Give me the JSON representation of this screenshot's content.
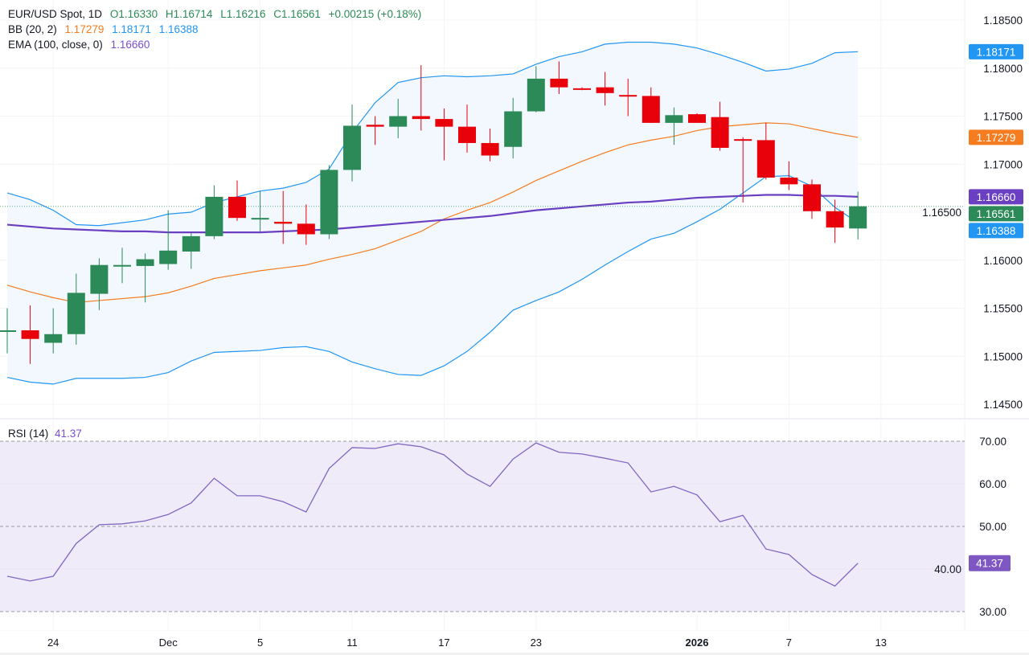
{
  "header": {
    "symbol": "EUR/USD Spot, 1D",
    "open": "O1.16330",
    "high": "H1.16714",
    "low": "L1.16216",
    "close": "C1.16561",
    "change": "+0.00215 (+0.18%)",
    "bb_label": "BB (20, 2)",
    "bb_basis": "1.17279",
    "bb_upper": "1.18171",
    "bb_lower": "1.16388",
    "ema_label": "EMA (100, close, 0)",
    "ema_value": "1.16660",
    "rsi_label": "RSI (14)",
    "rsi_value": "41.37"
  },
  "colors": {
    "up": "#2b8a57",
    "down": "#e8000b",
    "bb_basis": "#f57c1f",
    "bb_band": "#2196f3",
    "bb_fill": "#f2f8fe",
    "ema": "#6a3fc2",
    "rsi": "#8067c2",
    "rsi_fill": "#f0ebf8"
  },
  "chart_data": [
    {
      "type": "candlestick",
      "title": "EUR/USD Spot, 1D",
      "ylim": [
        1.1435,
        1.1875
      ],
      "y_ticks": [
        "1.18500",
        "1.18000",
        "1.17500",
        "1.17000",
        "1.16500",
        "1.16000",
        "1.15500",
        "1.15000",
        "1.14500"
      ],
      "x_tick_labels": [
        {
          "label": "24",
          "bar": 2
        },
        {
          "label": "Dec",
          "bar": 7
        },
        {
          "label": "5",
          "bar": 11
        },
        {
          "label": "11",
          "bar": 15
        },
        {
          "label": "17",
          "bar": 19
        },
        {
          "label": "23",
          "bar": 23
        },
        {
          "label": "2026",
          "bar": 30,
          "bold": true
        },
        {
          "label": "7",
          "bar": 34
        },
        {
          "label": "13",
          "bar": 38
        }
      ],
      "grid": true,
      "candles": [
        [
          1.1526,
          1.155,
          1.1503,
          1.1527
        ],
        [
          1.1527,
          1.1553,
          1.1492,
          1.1518
        ],
        [
          1.1514,
          1.155,
          1.1503,
          1.1523
        ],
        [
          1.1523,
          1.1586,
          1.1512,
          1.1566
        ],
        [
          1.1565,
          1.1602,
          1.1548,
          1.1595
        ],
        [
          1.1594,
          1.1613,
          1.1576,
          1.1595
        ],
        [
          1.1594,
          1.1607,
          1.1556,
          1.1601
        ],
        [
          1.1596,
          1.1652,
          1.159,
          1.161
        ],
        [
          1.1609,
          1.1628,
          1.1591,
          1.1625
        ],
        [
          1.1625,
          1.1678,
          1.1622,
          1.1666
        ],
        [
          1.1666,
          1.1683,
          1.1641,
          1.1644
        ],
        [
          1.1644,
          1.1672,
          1.163,
          1.1644
        ],
        [
          1.164,
          1.1672,
          1.1617,
          1.1638
        ],
        [
          1.1638,
          1.1658,
          1.1616,
          1.1627
        ],
        [
          1.1627,
          1.1699,
          1.1622,
          1.1694
        ],
        [
          1.1694,
          1.1762,
          1.1682,
          1.174
        ],
        [
          1.1741,
          1.175,
          1.172,
          1.1739
        ],
        [
          1.1739,
          1.1768,
          1.1727,
          1.175
        ],
        [
          1.175,
          1.1803,
          1.1735,
          1.1747
        ],
        [
          1.1747,
          1.1758,
          1.1704,
          1.1739
        ],
        [
          1.1739,
          1.1762,
          1.1712,
          1.1722
        ],
        [
          1.1722,
          1.1737,
          1.1703,
          1.1709
        ],
        [
          1.1718,
          1.1769,
          1.1706,
          1.1755
        ],
        [
          1.1755,
          1.1802,
          1.1754,
          1.1789
        ],
        [
          1.1789,
          1.1807,
          1.1773,
          1.178
        ],
        [
          1.1779,
          1.178,
          1.1777,
          1.1778
        ],
        [
          1.178,
          1.1796,
          1.1761,
          1.1774
        ],
        [
          1.1772,
          1.1789,
          1.175,
          1.1771
        ],
        [
          1.1771,
          1.178,
          1.1743,
          1.1743
        ],
        [
          1.1743,
          1.1759,
          1.172,
          1.1751
        ],
        [
          1.1752,
          1.1753,
          1.1743,
          1.1743
        ],
        [
          1.1749,
          1.1765,
          1.1714,
          1.1717
        ],
        [
          1.1726,
          1.1728,
          1.166,
          1.1725
        ],
        [
          1.1725,
          1.1743,
          1.1684,
          1.1686
        ],
        [
          1.1686,
          1.1703,
          1.1673,
          1.1679
        ],
        [
          1.1679,
          1.1684,
          1.1643,
          1.1651
        ],
        [
          1.1651,
          1.1663,
          1.1618,
          1.1634
        ],
        [
          1.1633,
          1.16714,
          1.16216,
          1.16561
        ]
      ],
      "bb_upper": [
        1.167,
        1.1663,
        1.1652,
        1.1637,
        1.1636,
        1.1639,
        1.1642,
        1.1648,
        1.165,
        1.166,
        1.1666,
        1.1672,
        1.1675,
        1.1681,
        1.1695,
        1.1733,
        1.1764,
        1.1785,
        1.179,
        1.1792,
        1.1791,
        1.1792,
        1.1794,
        1.1804,
        1.1812,
        1.1817,
        1.1825,
        1.1827,
        1.1827,
        1.1825,
        1.1821,
        1.1814,
        1.1806,
        1.1797,
        1.1799,
        1.1805,
        1.1816,
        1.18171
      ],
      "bb_basis": [
        1.1574,
        1.1567,
        1.1561,
        1.1556,
        1.1558,
        1.156,
        1.1562,
        1.1566,
        1.1573,
        1.1581,
        1.1585,
        1.1589,
        1.1592,
        1.1595,
        1.1601,
        1.1606,
        1.1612,
        1.1621,
        1.163,
        1.1643,
        1.1652,
        1.166,
        1.1671,
        1.1683,
        1.1693,
        1.1703,
        1.1712,
        1.172,
        1.1725,
        1.1729,
        1.1735,
        1.1739,
        1.1741,
        1.1743,
        1.1742,
        1.1737,
        1.1732,
        1.17279
      ],
      "bb_lower": [
        1.1478,
        1.1473,
        1.1471,
        1.1477,
        1.1477,
        1.1477,
        1.1478,
        1.1483,
        1.1495,
        1.1504,
        1.1505,
        1.1506,
        1.1509,
        1.151,
        1.1505,
        1.1494,
        1.1487,
        1.1481,
        1.148,
        1.149,
        1.1505,
        1.1525,
        1.1548,
        1.1558,
        1.1567,
        1.158,
        1.1595,
        1.1609,
        1.1622,
        1.1628,
        1.164,
        1.1653,
        1.167,
        1.1687,
        1.1688,
        1.1677,
        1.1655,
        1.16388
      ],
      "ema": [
        1.1637,
        1.1635,
        1.1633,
        1.1632,
        1.1631,
        1.163,
        1.163,
        1.1629,
        1.1629,
        1.1629,
        1.1629,
        1.1629,
        1.163,
        1.1631,
        1.1632,
        1.1634,
        1.1636,
        1.1638,
        1.164,
        1.1642,
        1.1644,
        1.1646,
        1.1649,
        1.1652,
        1.1654,
        1.1656,
        1.1658,
        1.166,
        1.1661,
        1.1663,
        1.1665,
        1.1666,
        1.1667,
        1.1668,
        1.1668,
        1.1667,
        1.1667,
        1.1666
      ],
      "last_price": 1.16561,
      "price_badges": [
        {
          "value": "1.18171",
          "color": "#2196f3",
          "price": 1.18171
        },
        {
          "value": "1.17279",
          "color": "#f57c1f",
          "price": 1.17279
        },
        {
          "value": "1.16660",
          "color": "#6a3fc2",
          "price": 1.1666
        },
        {
          "value": "1.16561",
          "color": "#2b8a57",
          "price": 1.16561
        },
        {
          "value": "1.16388",
          "color": "#2196f3",
          "price": 1.16388
        }
      ]
    },
    {
      "type": "line",
      "title": "RSI (14)",
      "ylim": [
        30,
        70
      ],
      "y_ticks": [
        "70.00",
        "60.00",
        "50.00",
        "40.00",
        "30.00"
      ],
      "levels": [
        70,
        50,
        30
      ],
      "values": [
        38.3,
        37.2,
        38.3,
        46.0,
        50.4,
        50.6,
        51.3,
        52.8,
        55.5,
        61.3,
        57.2,
        57.2,
        55.8,
        53.4,
        63.6,
        68.5,
        68.3,
        69.4,
        68.7,
        66.8,
        62.3,
        59.4,
        65.8,
        69.6,
        67.4,
        67.0,
        66.0,
        64.9,
        58.1,
        59.4,
        57.4,
        51.1,
        52.6,
        44.7,
        43.4,
        38.7,
        36.0,
        41.37
      ],
      "last_badge": "41.37"
    }
  ]
}
